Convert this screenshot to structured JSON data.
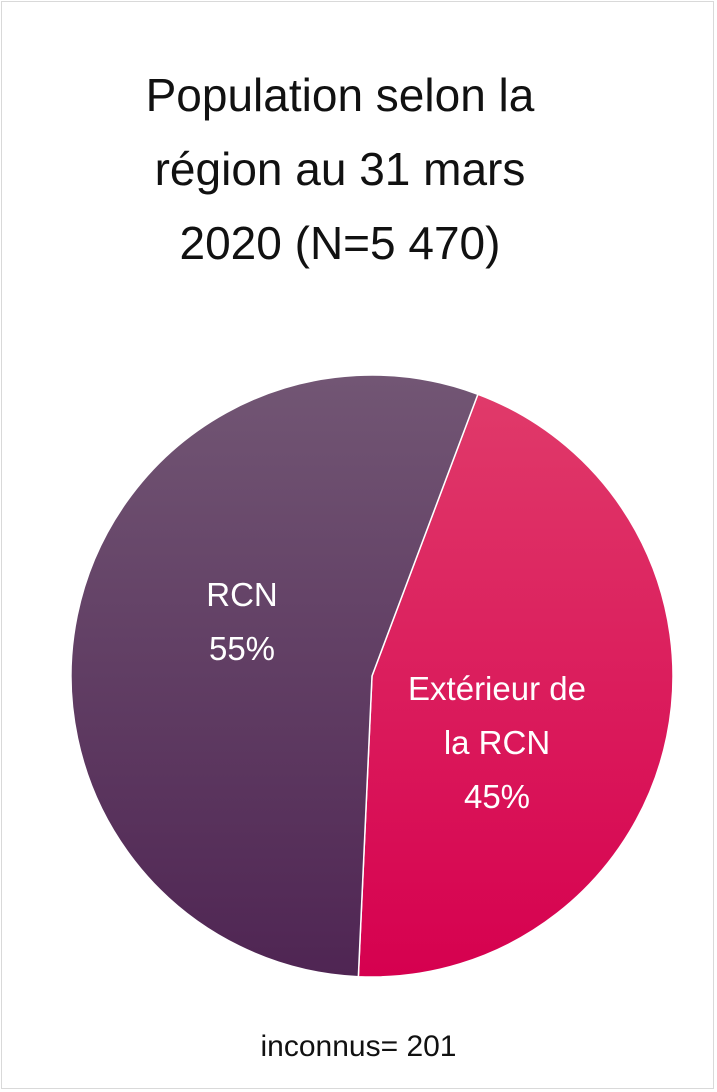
{
  "chart_data": {
    "type": "pie",
    "title_lines": [
      "Population selon la",
      "région au 31 mars",
      "2020 (N=5 470)"
    ],
    "slices": [
      {
        "label_lines": [
          "Extérieur de",
          "la RCN",
          "45%"
        ],
        "value": 45,
        "color_top": "#e03a6a",
        "color_bottom": "#d6004f"
      },
      {
        "label_lines": [
          "RCN",
          "55%"
        ],
        "value": 55,
        "color_top": "#725674",
        "color_bottom": "#4f2553"
      }
    ],
    "footnote": "inconnus=  201"
  }
}
